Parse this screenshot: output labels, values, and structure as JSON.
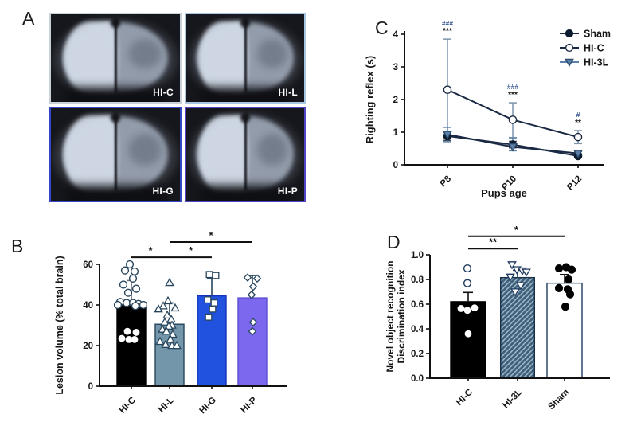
{
  "panels": {
    "a_label": "A",
    "b_label": "B",
    "c_label": "C",
    "d_label": "D"
  },
  "panel_a": {
    "images": [
      {
        "label": "HI-C",
        "border_color": "#c9d2da"
      },
      {
        "label": "HI-L",
        "border_color": "#a9c7e2"
      },
      {
        "label": "HI-G",
        "border_color": "#3546c6"
      },
      {
        "label": "HI-P",
        "border_color": "#5146c8"
      }
    ]
  },
  "chart_data": [
    {
      "panel": "B",
      "type": "bar",
      "ylabel": "Lesion volume (% total brain)",
      "categories": [
        "HI-C",
        "HI-L",
        "HI-G",
        "HI-P"
      ],
      "values": [
        40,
        30.5,
        44.5,
        43.5
      ],
      "errors_up": [
        12,
        10.5,
        8.5,
        11
      ],
      "ylim": [
        0,
        60
      ],
      "yticks": [
        0,
        20,
        40,
        60
      ],
      "grid": false,
      "bar_colors": [
        "#000000",
        "#7396ab",
        "#2052df",
        "#7b68ee"
      ],
      "bar_edge_colors": [
        "#000000",
        "#27455c",
        "#1533b8",
        "#5a4fd4"
      ],
      "error_colors": [
        "#6a7280",
        "#27455c",
        "#27455c",
        "#27455c"
      ],
      "marker_types": [
        "circle",
        "triangle-up",
        "square",
        "diamond"
      ],
      "marker_color": "#27455c",
      "points_open": [
        [
          [
            60,
            -2
          ],
          [
            57,
            -8
          ],
          [
            56.5,
            4
          ],
          [
            53,
            2
          ],
          [
            50,
            -10
          ],
          [
            48,
            6
          ],
          [
            46,
            -4
          ],
          [
            41.5,
            -14
          ],
          [
            41,
            -6
          ],
          [
            41,
            2
          ],
          [
            40.5,
            9
          ],
          [
            40,
            15
          ],
          [
            40,
            -17
          ],
          [
            39.5,
            5
          ]
        ],
        [
          [
            51,
            0
          ],
          [
            42,
            -2
          ],
          [
            39.5,
            -8
          ],
          [
            38.5,
            7
          ],
          [
            38,
            -14
          ],
          [
            35,
            -3
          ],
          [
            33,
            2
          ],
          [
            31.5,
            -6
          ],
          [
            30,
            3
          ],
          [
            29.5,
            -1
          ],
          [
            28,
            -9
          ],
          [
            27,
            -4
          ],
          [
            25.5,
            4
          ],
          [
            23,
            1
          ],
          [
            22,
            -12
          ],
          [
            20.5,
            -5
          ],
          [
            20,
            3
          ],
          [
            20,
            9
          ]
        ],
        [
          [
            55,
            -3
          ],
          [
            54.5,
            5
          ],
          [
            42.5,
            -5
          ],
          [
            41,
            3
          ],
          [
            38,
            1
          ],
          [
            34,
            -4
          ]
        ],
        [
          [
            53.5,
            -6
          ],
          [
            53,
            6
          ],
          [
            49,
            1
          ],
          [
            45,
            -1
          ],
          [
            31.5,
            1
          ],
          [
            27,
            0
          ]
        ]
      ],
      "points_white": [
        [
          [
            27,
            -5
          ],
          [
            26.5,
            6
          ],
          [
            23.5,
            -12
          ],
          [
            23,
            -3
          ],
          [
            23,
            4
          ]
        ],
        [],
        [],
        []
      ],
      "points_solid": [
        [],
        [],
        [],
        []
      ],
      "sig": [
        {
          "from": 0,
          "to": 1,
          "y": 63.5,
          "label": "*"
        },
        {
          "from": 1,
          "to": 2,
          "y": 63.5,
          "label": "*"
        },
        {
          "from": 1,
          "to": 3,
          "y": 71,
          "label": "*"
        }
      ]
    },
    {
      "panel": "C",
      "type": "line",
      "ylabel": "Righting reflex (s)",
      "xlabel": "Pups age",
      "categories": [
        "P8",
        "P10",
        "P12"
      ],
      "ylim": [
        0,
        4
      ],
      "yticks": [
        0,
        1,
        2,
        3,
        4
      ],
      "grid": false,
      "legend_position": "top-right",
      "series": [
        {
          "name": "Sham",
          "marker": "circle",
          "marker_fill": "#0d1b2e",
          "marker_stroke": "#0d1b2e",
          "color": "#1b2a44",
          "legend_line_color": "#1b2a44",
          "error_color": "#3c4654",
          "values": [
            0.88,
            0.62,
            0.27
          ],
          "err_up": [
            0.13,
            0.1,
            0.07
          ],
          "err_dn": [
            0.13,
            0.1,
            0.05
          ]
        },
        {
          "name": "HI-C",
          "marker": "circle",
          "marker_fill": "#ffffff",
          "marker_stroke": "#1b2a44",
          "color": "#1b2a44",
          "legend_line_color": "#1b2a44",
          "error_color": "#7d93ad",
          "values": [
            2.3,
            1.38,
            0.85
          ],
          "err_up": [
            1.55,
            0.52,
            0.2
          ],
          "err_dn": [
            1.15,
            0.55,
            0.2
          ]
        },
        {
          "name": "HI-3L",
          "marker": "triangle-down",
          "marker_fill": "#5b7fa6",
          "marker_stroke": "#2b4a6b",
          "color": "#1b2a44",
          "legend_line_color": "#5b7fa6",
          "error_color": "#5b7fa6",
          "values": [
            0.93,
            0.55,
            0.35
          ],
          "err_up": [
            0.22,
            0.28,
            0.06
          ],
          "err_dn": [
            0.22,
            0.12,
            0.06
          ]
        }
      ],
      "annotations": [
        {
          "x_index": 0,
          "hash": "###",
          "stars": "***"
        },
        {
          "x_index": 1,
          "hash": "###",
          "stars": "***"
        },
        {
          "x_index": 2,
          "hash": "#",
          "stars": "**"
        }
      ],
      "hash_color": "#31518f",
      "star_color": "#141414"
    },
    {
      "panel": "D",
      "type": "bar",
      "ylabel_line1": "Novel object recognition",
      "ylabel_line2": "Discrimination index",
      "categories": [
        "HI-C",
        "HI-3L",
        "Sham"
      ],
      "values": [
        0.62,
        0.82,
        0.77
      ],
      "errors_up": [
        0.075,
        0.055,
        0.07
      ],
      "ylim": [
        0,
        1
      ],
      "yticks": [
        0,
        0.2,
        0.4,
        0.6,
        0.8,
        1
      ],
      "ytick_labels": [
        "0.0",
        "0.2",
        "0.4",
        "0.6",
        "0.8",
        "1.0"
      ],
      "grid": false,
      "bar_colors": [
        "#000000",
        "hatch",
        "#ffffff"
      ],
      "bar_edge_colors": [
        "#000000",
        "#16324a",
        "#1e3a5f"
      ],
      "error_colors": [
        "#111111",
        "#16324a",
        "#111111"
      ],
      "marker_types": [
        "circle",
        "triangle-down",
        "circle"
      ],
      "marker_color": "#1e3a5f",
      "hatch": {
        "bg": "#3f617c",
        "line": "#a3b8c8"
      },
      "points_open": [
        [
          [
            0.89,
            -1
          ],
          [
            0.77,
            -1
          ]
        ],
        [
          [
            0.92,
            -7
          ],
          [
            0.88,
            -1
          ],
          [
            0.87,
            6
          ],
          [
            0.86,
            11
          ],
          [
            0.82,
            -9
          ],
          [
            0.75,
            4
          ],
          [
            0.7,
            -3
          ]
        ],
        []
      ],
      "points_white": [
        [
          [
            0.565,
            -9
          ],
          [
            0.55,
            -1
          ],
          [
            0.57,
            8
          ],
          [
            0.36,
            0
          ]
        ],
        [],
        []
      ],
      "points_solid": [
        [],
        [],
        [
          [
            0.89,
            -7
          ],
          [
            0.9,
            2
          ],
          [
            0.88,
            9
          ],
          [
            0.8,
            5
          ],
          [
            0.73,
            -7
          ],
          [
            0.72,
            4
          ],
          [
            0.68,
            7
          ],
          [
            0.58,
            1
          ]
        ]
      ],
      "sig": [
        {
          "from": 0,
          "to": 1,
          "y": 1.05,
          "label": "**"
        },
        {
          "from": 0,
          "to": 2,
          "y": 1.15,
          "label": "*"
        }
      ]
    }
  ]
}
